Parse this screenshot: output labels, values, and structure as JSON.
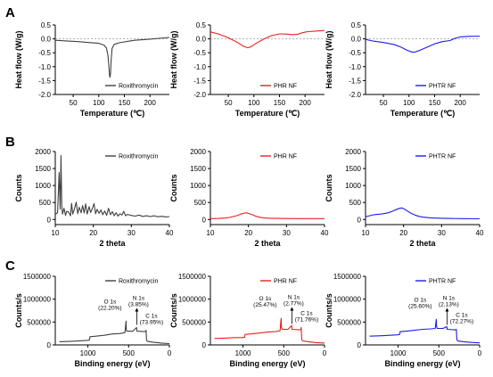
{
  "panels": [
    {
      "letter": "A"
    },
    {
      "letter": "B"
    },
    {
      "letter": "C"
    }
  ],
  "chart_data": [
    {
      "type": "line",
      "panel": "A",
      "xlabel": "Temperature (℃)",
      "ylabel": "Heat flow (W/g)",
      "xlim": [
        15,
        238
      ],
      "ylim": [
        -2.0,
        0.5
      ],
      "x_direction": "normal",
      "xticks": [
        "50",
        "100",
        "150",
        "200"
      ],
      "yticks": [
        "-2.0",
        "-1.5",
        "-1.0",
        "-0.5",
        "0.0",
        "0.5"
      ],
      "ytick_values": [
        -2.0,
        -1.5,
        -1.0,
        -0.5,
        0.0,
        0.5
      ],
      "baseline": 0,
      "legend_position": "bottom-right",
      "series": [
        {
          "name": "Roxithromycin",
          "color": "#404040",
          "x": [
            15,
            40,
            60,
            80,
            100,
            110,
            115,
            118,
            120,
            121,
            122,
            123,
            124,
            126,
            130,
            140,
            160,
            170,
            200,
            238
          ],
          "y": [
            -0.05,
            -0.08,
            -0.1,
            -0.13,
            -0.16,
            -0.22,
            -0.33,
            -0.6,
            -1.05,
            -1.3,
            -1.38,
            -1.25,
            -0.8,
            -0.35,
            -0.2,
            -0.14,
            -0.08,
            -0.05,
            -0.01,
            0.05
          ]
        }
      ]
    },
    {
      "type": "line",
      "panel": "A",
      "xlabel": "Temperature (℃)",
      "ylabel": "Heat flow (W/g)",
      "xlim": [
        15,
        238
      ],
      "ylim": [
        -2.0,
        0.5
      ],
      "x_direction": "normal",
      "xticks": [
        "50",
        "100",
        "150",
        "200"
      ],
      "yticks": [
        "-2.0",
        "-1.5",
        "-1.0",
        "-0.5",
        "0.0",
        "0.5"
      ],
      "ytick_values": [
        -2.0,
        -1.5,
        -1.0,
        -0.5,
        0.0,
        0.5
      ],
      "baseline": 0,
      "legend_position": "bottom-right",
      "series": [
        {
          "name": "PHR NF",
          "color": "#e8201e",
          "x": [
            15,
            30,
            45,
            60,
            70,
            80,
            88,
            95,
            105,
            120,
            135,
            150,
            165,
            175,
            185,
            195,
            205,
            220,
            238
          ],
          "y": [
            0.25,
            0.18,
            0.08,
            -0.05,
            -0.15,
            -0.27,
            -0.32,
            -0.28,
            -0.15,
            0.0,
            0.12,
            0.18,
            0.17,
            0.15,
            0.16,
            0.22,
            0.26,
            0.28,
            0.3
          ]
        }
      ]
    },
    {
      "type": "line",
      "panel": "A",
      "xlabel": "Temperature (℃)",
      "ylabel": "Heat flow (W/g)",
      "xlim": [
        15,
        238
      ],
      "ylim": [
        -2.0,
        0.5
      ],
      "x_direction": "normal",
      "xticks": [
        "50",
        "100",
        "150",
        "200"
      ],
      "yticks": [
        "-2.0",
        "-1.5",
        "-1.0",
        "-0.5",
        "0.0",
        "0.5"
      ],
      "ytick_values": [
        -2.0,
        -1.5,
        -1.0,
        -0.5,
        0.0,
        0.5
      ],
      "baseline": 0,
      "legend_position": "bottom-right",
      "series": [
        {
          "name": "PHTR NF",
          "color": "#1c1cf0",
          "x": [
            15,
            30,
            50,
            70,
            85,
            95,
            105,
            110,
            120,
            135,
            150,
            165,
            180,
            190,
            200,
            215,
            238
          ],
          "y": [
            -0.02,
            -0.08,
            -0.13,
            -0.2,
            -0.3,
            -0.4,
            -0.47,
            -0.48,
            -0.42,
            -0.3,
            -0.18,
            -0.1,
            -0.06,
            0.02,
            0.07,
            0.09,
            0.1
          ]
        }
      ]
    },
    {
      "type": "line",
      "panel": "B",
      "xlabel": "2 theta",
      "ylabel": "Counts",
      "xlim": [
        10,
        40
      ],
      "ylim": [
        -150,
        2000
      ],
      "x_direction": "normal",
      "xticks": [
        "10",
        "20",
        "30",
        "40"
      ],
      "yticks": [
        "0",
        "500",
        "1000",
        "1500",
        "2000"
      ],
      "ytick_values": [
        0,
        500,
        1000,
        1500,
        2000
      ],
      "legend_position": "top-right",
      "series": [
        {
          "name": "Roxithromycin",
          "color": "#404040",
          "x": [
            10.0,
            10.6,
            11.0,
            11.3,
            11.5,
            11.7,
            11.9,
            12.3,
            12.7,
            13.0,
            13.5,
            14.0,
            14.3,
            14.6,
            15.0,
            15.5,
            15.9,
            16.3,
            16.8,
            17.2,
            17.6,
            18.0,
            18.4,
            18.9,
            19.3,
            19.7,
            20.2,
            20.6,
            21.0,
            21.5,
            22.0,
            22.5,
            23.0,
            23.5,
            24.0,
            24.5,
            25.0,
            25.5,
            26.0,
            26.5,
            27.0,
            27.5,
            28.0,
            28.5,
            29.0,
            30.0,
            31.0,
            32.0,
            33.0,
            34.0,
            35.0,
            36.0,
            37.0,
            38.0,
            39.0,
            40.0
          ],
          "y": [
            150,
            200,
            1380,
            300,
            1880,
            400,
            160,
            330,
            120,
            240,
            220,
            110,
            480,
            160,
            290,
            510,
            170,
            360,
            200,
            410,
            190,
            460,
            160,
            380,
            210,
            310,
            470,
            170,
            300,
            180,
            280,
            140,
            250,
            120,
            330,
            140,
            230,
            110,
            200,
            100,
            170,
            130,
            240,
            110,
            150,
            120,
            100,
            130,
            90,
            110,
            85,
            110,
            80,
            95,
            75,
            85
          ]
        }
      ]
    },
    {
      "type": "line",
      "panel": "B",
      "xlabel": "2 theta",
      "ylabel": "Counts",
      "xlim": [
        10,
        40
      ],
      "ylim": [
        -150,
        2000
      ],
      "x_direction": "normal",
      "xticks": [
        "10",
        "20",
        "30",
        "40"
      ],
      "yticks": [
        "0",
        "500",
        "1000",
        "1500",
        "2000"
      ],
      "ytick_values": [
        0,
        500,
        1000,
        1500,
        2000
      ],
      "legend_position": "top-right",
      "series": [
        {
          "name": "PHR NF",
          "color": "#e8201e",
          "x": [
            10,
            12,
            14,
            15,
            16,
            17,
            18,
            19,
            19.5,
            20,
            21,
            22,
            23,
            24,
            26,
            30,
            35,
            40
          ],
          "y": [
            25,
            30,
            45,
            60,
            85,
            115,
            160,
            190,
            195,
            180,
            140,
            95,
            65,
            45,
            35,
            28,
            25,
            25
          ]
        }
      ]
    },
    {
      "type": "line",
      "panel": "B",
      "xlabel": "2 theta",
      "ylabel": "Counts",
      "xlim": [
        10,
        40
      ],
      "ylim": [
        -150,
        2000
      ],
      "x_direction": "normal",
      "xticks": [
        "10",
        "20",
        "30",
        "40"
      ],
      "yticks": [
        "0",
        "500",
        "1000",
        "1500",
        "2000"
      ],
      "ytick_values": [
        0,
        500,
        1000,
        1500,
        2000
      ],
      "legend_position": "top-right",
      "series": [
        {
          "name": "PHTR NF",
          "color": "#1c1cf0",
          "x": [
            10,
            11,
            12,
            13,
            14,
            15,
            16,
            17,
            18,
            19,
            19.5,
            20,
            21,
            22,
            23,
            24,
            25,
            27,
            30,
            35,
            40
          ],
          "y": [
            80,
            110,
            135,
            150,
            160,
            175,
            200,
            240,
            290,
            330,
            340,
            320,
            250,
            180,
            130,
            95,
            70,
            50,
            35,
            25,
            20
          ]
        }
      ]
    },
    {
      "type": "line",
      "panel": "C",
      "xlabel": "Binding energy (eV)",
      "ylabel": "Counts/s",
      "xlim": [
        1400,
        0
      ],
      "ylim": [
        0,
        1500000
      ],
      "x_direction": "reversed",
      "xticks": [
        "1000",
        "500",
        "0"
      ],
      "yticks": [
        "0",
        "500000",
        "1000000",
        "1500000"
      ],
      "ytick_values": [
        0,
        500000,
        1000000,
        1500000
      ],
      "legend_position": "top-right",
      "annotations": [
        {
          "label": "O 1s",
          "pct": "(22.20%)",
          "x": 532,
          "y": 520000
        },
        {
          "label": "N 1s",
          "pct": "(3.85%)",
          "x": 400,
          "y": 400000
        },
        {
          "label": "C 1s",
          "pct": "(73.95%)",
          "x": 285,
          "y": 320000
        }
      ],
      "series": [
        {
          "name": "Roxithromycin",
          "color": "#404040",
          "x": [
            1350,
            1200,
            1100,
            1010,
            980,
            975,
            900,
            800,
            700,
            600,
            545,
            536,
            532,
            528,
            520,
            450,
            402,
            398,
            300,
            290,
            285,
            280,
            270,
            200,
            100,
            0
          ],
          "y": [
            70000,
            80000,
            90000,
            100000,
            110000,
            180000,
            190000,
            210000,
            240000,
            250000,
            270000,
            450000,
            520000,
            330000,
            300000,
            300000,
            380000,
            300000,
            290000,
            300000,
            320000,
            100000,
            80000,
            60000,
            40000,
            30000
          ]
        }
      ]
    },
    {
      "type": "line",
      "panel": "C",
      "xlabel": "Binding energy (eV)",
      "ylabel": "Counts/s",
      "xlim": [
        1400,
        0
      ],
      "ylim": [
        0,
        1500000
      ],
      "x_direction": "reversed",
      "xticks": [
        "1000",
        "500",
        "0"
      ],
      "yticks": [
        "0",
        "500000",
        "1000000",
        "1500000"
      ],
      "ytick_values": [
        0,
        500000,
        1000000,
        1500000
      ],
      "legend_position": "top-right",
      "annotations": [
        {
          "label": "O 1s",
          "pct": "(25.47%)",
          "x": 532,
          "y": 580000
        },
        {
          "label": "N 1s",
          "pct": "(2.77%)",
          "x": 400,
          "y": 420000
        },
        {
          "label": "C 1s",
          "pct": "(71.76%)",
          "x": 285,
          "y": 380000
        }
      ],
      "series": [
        {
          "name": "PHR NF",
          "color": "#e8201e",
          "x": [
            1350,
            1200,
            1100,
            1010,
            980,
            975,
            900,
            800,
            700,
            600,
            545,
            536,
            532,
            528,
            520,
            450,
            402,
            398,
            300,
            290,
            285,
            280,
            270,
            200,
            100,
            0
          ],
          "y": [
            140000,
            150000,
            160000,
            160000,
            170000,
            230000,
            240000,
            260000,
            280000,
            290000,
            310000,
            520000,
            580000,
            380000,
            340000,
            340000,
            420000,
            340000,
            330000,
            340000,
            380000,
            120000,
            90000,
            70000,
            50000,
            40000
          ]
        }
      ]
    },
    {
      "type": "line",
      "panel": "C",
      "xlabel": "Binding energy (eV)",
      "ylabel": "Counts/s",
      "xlim": [
        1400,
        0
      ],
      "ylim": [
        0,
        1500000
      ],
      "x_direction": "reversed",
      "xticks": [
        "1000",
        "500",
        "0"
      ],
      "yticks": [
        "0",
        "500000",
        "1000000",
        "1500000"
      ],
      "ytick_values": [
        0,
        500000,
        1000000,
        1500000
      ],
      "legend_position": "top-right",
      "annotations": [
        {
          "label": "O 1s",
          "pct": "(25.60%)",
          "x": 532,
          "y": 560000
        },
        {
          "label": "N 1s",
          "pct": "(2.13%)",
          "x": 400,
          "y": 400000
        },
        {
          "label": "C 1s",
          "pct": "(72.27%)",
          "x": 285,
          "y": 340000
        }
      ],
      "series": [
        {
          "name": "PHTR NF",
          "color": "#1c1cf0",
          "x": [
            1350,
            1200,
            1100,
            1010,
            980,
            975,
            900,
            800,
            700,
            600,
            545,
            536,
            532,
            528,
            520,
            450,
            402,
            398,
            300,
            290,
            285,
            280,
            270,
            200,
            100,
            0
          ],
          "y": [
            190000,
            200000,
            210000,
            220000,
            230000,
            290000,
            300000,
            320000,
            340000,
            350000,
            360000,
            500000,
            560000,
            400000,
            360000,
            360000,
            400000,
            340000,
            330000,
            330000,
            340000,
            120000,
            90000,
            70000,
            55000,
            45000
          ]
        }
      ]
    }
  ]
}
